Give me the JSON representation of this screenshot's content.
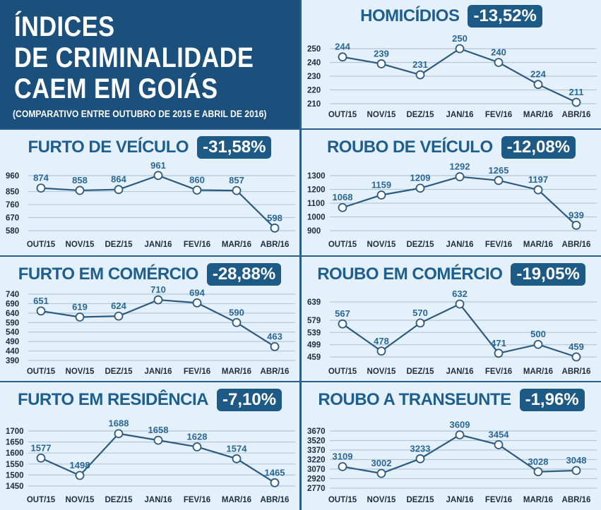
{
  "header": {
    "line1": "ÍNDICES",
    "line2": "DE CRIMINALIDADE",
    "line3": "CAEM EM GOIÁS",
    "subtitle": "(COMPARATIVO ENTRE OUTUBRO DE 2015 E ABRIL DE 2016)"
  },
  "colors": {
    "header_bg": "#1b4f7c",
    "panel_bg": "#e4f1fb",
    "title": "#1e5f90",
    "badge_bg": "#1d5a86",
    "line": "#2d5a80",
    "border": "#2a5d87"
  },
  "chart_data": [
    {
      "type": "line",
      "title": "HOMICÍDIOS",
      "change": "-13,52%",
      "categories": [
        "OUT/15",
        "NOV/15",
        "DEZ/15",
        "JAN/16",
        "FEV/16",
        "MAR/16",
        "ABR/16"
      ],
      "values": [
        244,
        239,
        231,
        250,
        240,
        224,
        211
      ],
      "yticks": [
        250,
        240,
        230,
        220,
        210
      ],
      "ylim": [
        210,
        250
      ],
      "grid": true
    },
    {
      "type": "line",
      "title": "FURTO DE VEÍCULO",
      "change": "-31,58%",
      "categories": [
        "OUT/15",
        "NOV/15",
        "DEZ/15",
        "JAN/16",
        "FEV/16",
        "MAR/16",
        "ABR/16"
      ],
      "values": [
        874,
        858,
        864,
        961,
        860,
        857,
        598
      ],
      "yticks": [
        960,
        850,
        760,
        670,
        580
      ],
      "ylim": [
        580,
        960
      ],
      "grid": true
    },
    {
      "type": "line",
      "title": "ROUBO DE VEÍCULO",
      "change": "-12,08%",
      "categories": [
        "OUT/15",
        "NOV/15",
        "DEZ/15",
        "JAN/16",
        "FEV/16",
        "MAR/16",
        "ABR/16"
      ],
      "values": [
        1068,
        1159,
        1209,
        1292,
        1265,
        1197,
        939
      ],
      "yticks": [
        1300,
        1200,
        1100,
        1000,
        900
      ],
      "ylim": [
        900,
        1300
      ],
      "grid": true
    },
    {
      "type": "line",
      "title": "FURTO EM COMÉRCIO",
      "change": "-28,88%",
      "categories": [
        "OUT/15",
        "NOV/15",
        "DEZ/15",
        "JAN/16",
        "FEV/16",
        "MAR/16",
        "ABR/16"
      ],
      "values": [
        651,
        619,
        624,
        710,
        694,
        590,
        463
      ],
      "yticks": [
        740,
        690,
        640,
        590,
        540,
        490,
        440,
        390
      ],
      "ylim": [
        390,
        740
      ],
      "grid": true
    },
    {
      "type": "line",
      "title": "ROUBO EM COMÉRCIO",
      "change": "-19,05%",
      "categories": [
        "OUT/15",
        "NOV/15",
        "DEZ/15",
        "JAN/16",
        "FEV/16",
        "MAR/16",
        "ABR/16"
      ],
      "values": [
        567,
        478,
        570,
        632,
        471,
        500,
        459
      ],
      "yticks": [
        639,
        579,
        539,
        499,
        459
      ],
      "ylim": [
        459,
        639
      ],
      "grid": true
    },
    {
      "type": "line",
      "title": "FURTO EM RESIDÊNCIA",
      "change": "-7,10%",
      "categories": [
        "OUT/15",
        "NOV/15",
        "DEZ/15",
        "JAN/16",
        "FEV/16",
        "MAR/16",
        "ABR/16"
      ],
      "values": [
        1577,
        1498,
        1688,
        1658,
        1628,
        1574,
        1465
      ],
      "yticks": [
        1700,
        1650,
        1600,
        1550,
        1500,
        1450
      ],
      "ylim": [
        1450,
        1700
      ],
      "grid": true
    },
    {
      "type": "line",
      "title": "ROUBO A TRANSEUNTE",
      "change": "-1,96%",
      "categories": [
        "OUT/15",
        "NOV/15",
        "DEZ/15",
        "JAN/16",
        "FEV/16",
        "MAR/16",
        "ABR/16"
      ],
      "values": [
        3109,
        3002,
        3233,
        3609,
        3454,
        3028,
        3048
      ],
      "yticks": [
        3670,
        3520,
        3370,
        3220,
        3070,
        2920,
        2770
      ],
      "ylim": [
        2770,
        3670
      ],
      "grid": true
    }
  ]
}
